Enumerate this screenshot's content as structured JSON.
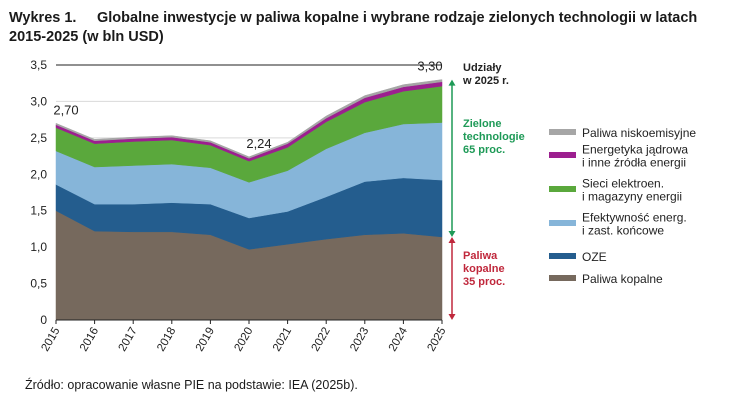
{
  "title": {
    "label": "Wykres 1.",
    "line1": "Globalne inwestycje w paliwa kopalne i wybrane rodzaje zielonych technologii w latach",
    "line2": "2015-2025 (w bln USD)"
  },
  "source": "Źródło: opracowanie własne PIE na podstawie: IEA (2025b).",
  "chart_data": {
    "type": "area",
    "stacked": true,
    "x": [
      "2015",
      "2016",
      "2017",
      "2018",
      "2019",
      "2020",
      "2021",
      "2022",
      "2023",
      "2024",
      "2025"
    ],
    "ylim": [
      0,
      3.5
    ],
    "yticks": [
      "0",
      "0,5",
      "1,0",
      "1,5",
      "2,0",
      "2,5",
      "3,0",
      "3,5"
    ],
    "series": [
      {
        "name": "Paliwa kopalne",
        "color": "#76695d",
        "values": [
          1.5,
          1.22,
          1.21,
          1.21,
          1.17,
          0.97,
          1.04,
          1.11,
          1.17,
          1.19,
          1.14
        ]
      },
      {
        "name": "OZE",
        "color": "#245d8e",
        "values": [
          0.36,
          0.37,
          0.38,
          0.4,
          0.42,
          0.43,
          0.45,
          0.58,
          0.73,
          0.76,
          0.78
        ]
      },
      {
        "name": "Efektywność energ.\ni zast. końcowe",
        "color": "#86b5d9",
        "values": [
          0.46,
          0.51,
          0.53,
          0.53,
          0.5,
          0.49,
          0.56,
          0.66,
          0.67,
          0.74,
          0.79
        ]
      },
      {
        "name": "Sieci elektroen.\ni magazyny energii",
        "color": "#5aa83c",
        "values": [
          0.32,
          0.32,
          0.33,
          0.33,
          0.31,
          0.29,
          0.32,
          0.37,
          0.42,
          0.45,
          0.5
        ]
      },
      {
        "name": "Energetyka jądrowa\ni inne źródła energii",
        "color": "#9c1f8f",
        "values": [
          0.04,
          0.04,
          0.04,
          0.04,
          0.04,
          0.04,
          0.05,
          0.05,
          0.06,
          0.06,
          0.06
        ]
      },
      {
        "name": "Paliwa niskoemisyjne",
        "color": "#a6a6a6",
        "values": [
          0.02,
          0.02,
          0.02,
          0.02,
          0.02,
          0.02,
          0.02,
          0.03,
          0.03,
          0.03,
          0.03
        ]
      }
    ],
    "legend": [
      {
        "label": "Paliwa niskoemisyjne",
        "color": "#a6a6a6"
      },
      {
        "label": "Energetyka jądrowa\ni inne źródła energii",
        "color": "#9c1f8f"
      },
      {
        "label": "Sieci elektroen.\ni magazyny energii",
        "color": "#5aa83c"
      },
      {
        "label": "Efektywność energ.\ni zast. końcowe",
        "color": "#86b5d9"
      },
      {
        "label": "OZE",
        "color": "#245d8e"
      },
      {
        "label": "Paliwa kopalne",
        "color": "#76695d"
      }
    ],
    "data_labels": [
      {
        "x": "2015",
        "text": "2,70"
      },
      {
        "x": "2020",
        "text": "2,24"
      },
      {
        "x": "2025",
        "text": "3,30"
      }
    ],
    "annotations": {
      "shares_title": "Udziały\nw 2025 r.",
      "green": {
        "text": "Zielone\ntechnologie\n65 proc.",
        "color": "#1e9a57"
      },
      "fossil": {
        "text": "Paliwa\nkopalne\n35 proc.",
        "color": "#c0283c"
      }
    }
  }
}
